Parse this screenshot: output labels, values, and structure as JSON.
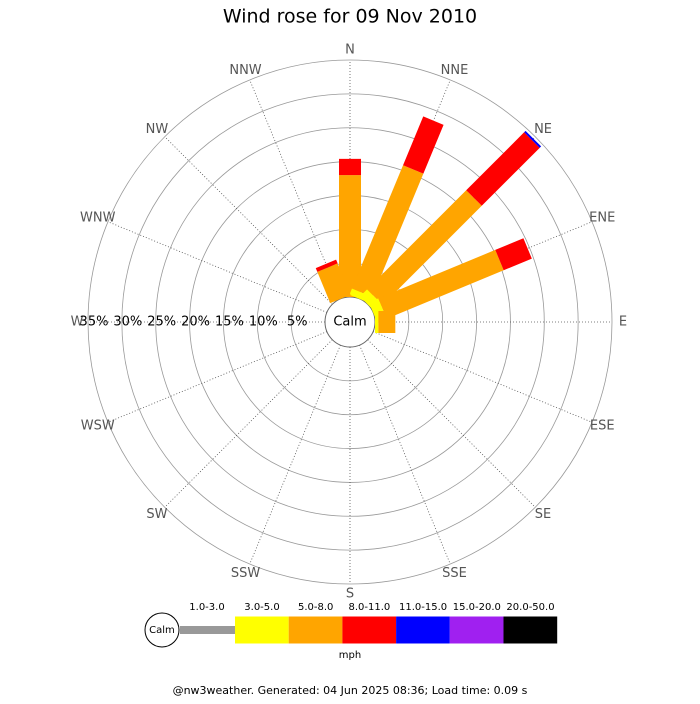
{
  "chart_data": {
    "type": "windrose",
    "title": "Wind rose for 09 Nov 2010",
    "directions": [
      "N",
      "NNE",
      "NE",
      "ENE",
      "E",
      "ESE",
      "SE",
      "SSE",
      "S",
      "SSW",
      "SW",
      "WSW",
      "W",
      "WNW",
      "NW",
      "NNW"
    ],
    "center_label": "Calm",
    "rlim": [
      0,
      35
    ],
    "rticks": [
      {
        "value": 5,
        "label": "5%"
      },
      {
        "value": 10,
        "label": "10%"
      },
      {
        "value": 15,
        "label": "15%"
      },
      {
        "value": 20,
        "label": "20%"
      },
      {
        "value": 25,
        "label": "25%"
      },
      {
        "value": 30,
        "label": "30%"
      },
      {
        "value": 35,
        "label": "35%"
      }
    ],
    "series": [
      {
        "name": "1.0-3.0",
        "color": "#999999",
        "values": [
          0,
          0,
          0,
          0,
          0,
          0,
          0,
          0,
          0,
          0,
          0,
          0,
          0,
          0,
          0,
          0
        ]
      },
      {
        "name": "3.0-5.0",
        "color": "#ffff00",
        "values": [
          0,
          1,
          1.5,
          1.5,
          0.5,
          0,
          0,
          0,
          0,
          0,
          0,
          0,
          0,
          0,
          0,
          0
        ]
      },
      {
        "name": "5.0-8.0",
        "color": "#ffa500",
        "values": [
          18,
          19.7,
          20.7,
          18.7,
          2.5,
          0,
          0,
          0,
          0,
          0,
          0,
          0,
          0,
          0,
          0,
          5
        ]
      },
      {
        "name": "8.0-11.0",
        "color": "#ff0000",
        "values": [
          2.4,
          7.8,
          12.1,
          4.5,
          0,
          0,
          0,
          0,
          0,
          0,
          0,
          0,
          0,
          0,
          0,
          0.6
        ]
      },
      {
        "name": "11.0-15.0",
        "color": "#0000ff",
        "values": [
          0,
          0,
          0.3,
          0,
          0,
          0,
          0,
          0,
          0,
          0,
          0,
          0,
          0,
          0,
          0,
          0
        ]
      },
      {
        "name": "15.0-20.0",
        "color": "#a020f0",
        "values": [
          0,
          0,
          0,
          0,
          0,
          0,
          0,
          0,
          0,
          0,
          0,
          0,
          0,
          0,
          0,
          0
        ]
      },
      {
        "name": "20.0-50.0",
        "color": "#000000",
        "values": [
          0,
          0,
          0,
          0,
          0,
          0,
          0,
          0,
          0,
          0,
          0,
          0,
          0,
          0,
          0,
          0
        ]
      }
    ],
    "legend_unit": "mph",
    "footer": "@nw3weather. Generated: 04 Jun 2025 08:36; Load time: 0.09 s"
  }
}
